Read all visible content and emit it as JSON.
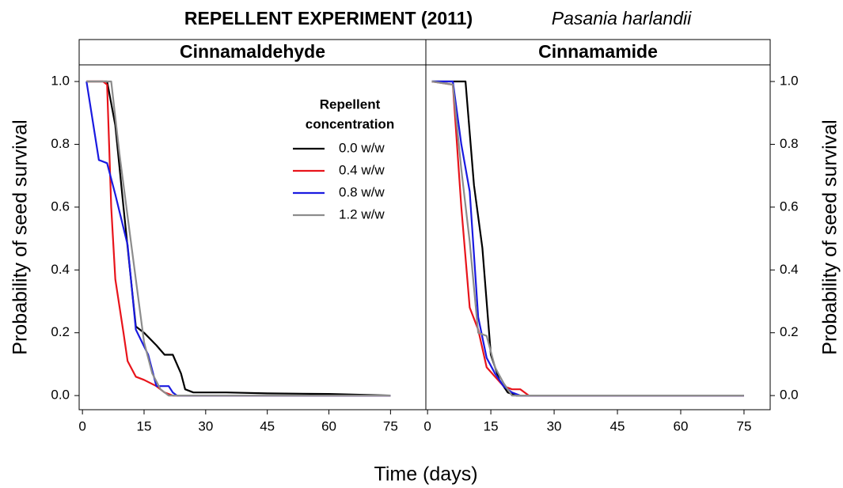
{
  "title": "REPELLENT EXPERIMENT (2011)",
  "species": "Pasania harlandii",
  "x_label": "Time (days)",
  "y_label": "Probability of seed survival",
  "legend_title": [
    "Repellent",
    "concentration"
  ],
  "chart_data": [
    {
      "type": "line",
      "title": "Cinnamaldehyde",
      "y_tick_side": "left",
      "xlim": [
        -0.8,
        83.6
      ],
      "xticks": [
        0,
        15,
        30,
        45,
        60,
        75
      ],
      "ylim": [
        -0.045,
        1.053
      ],
      "yticks": [
        {
          "value": 0,
          "label": "0.0"
        },
        0.2,
        0.4,
        0.6,
        0.8,
        {
          "value": 1,
          "label": "1.0"
        }
      ],
      "legend": "upper right",
      "series": [
        {
          "name": "0.0 w/w",
          "color": "#000000",
          "x": [
            1,
            5,
            6,
            8,
            10,
            13,
            15,
            18,
            20,
            22,
            24,
            25,
            27,
            35,
            45,
            60,
            75
          ],
          "values": [
            1,
            1,
            1,
            0.86,
            0.6,
            0.22,
            0.2,
            0.16,
            0.13,
            0.13,
            0.07,
            0.02,
            0.01,
            0.01,
            0.007,
            0.005,
            0
          ]
        },
        {
          "name": "0.4 w/w",
          "color": "#e8141b",
          "x": [
            1,
            5,
            6,
            7,
            8,
            10,
            11,
            13,
            15,
            18,
            20,
            22,
            75
          ],
          "values": [
            1,
            1,
            0.99,
            0.6,
            0.37,
            0.2,
            0.11,
            0.06,
            0.05,
            0.03,
            0.01,
            0,
            0
          ]
        },
        {
          "name": "0.8 w/w",
          "color": "#1a1ae0",
          "x": [
            1,
            4,
            6,
            8,
            11,
            13,
            16,
            18,
            21,
            22,
            23,
            75
          ],
          "values": [
            1,
            0.75,
            0.74,
            0.64,
            0.48,
            0.21,
            0.13,
            0.03,
            0.03,
            0.01,
            0,
            0
          ]
        },
        {
          "name": "1.2 w/w",
          "color": "#8c8c8c",
          "x": [
            1,
            5,
            7,
            9,
            12,
            15,
            17,
            19,
            21,
            72,
            75
          ],
          "values": [
            1,
            1,
            1,
            0.77,
            0.47,
            0.17,
            0.07,
            0.02,
            0,
            0,
            0
          ]
        }
      ]
    },
    {
      "type": "line",
      "title": "Cinnamamide",
      "y_tick_side": "right",
      "xlim": [
        -0.4,
        81.2
      ],
      "xticks": [
        0,
        15,
        30,
        45,
        60,
        75
      ],
      "ylim": [
        -0.045,
        1.053
      ],
      "yticks": [
        {
          "value": 0,
          "label": "0.0"
        },
        0.2,
        0.4,
        0.6,
        0.8,
        {
          "value": 1,
          "label": "1.0"
        }
      ],
      "series": [
        {
          "color": "#000000",
          "x": [
            1,
            6,
            9,
            11,
            13,
            15,
            17,
            19,
            21,
            75
          ],
          "values": [
            1,
            1,
            1,
            0.67,
            0.47,
            0.13,
            0.05,
            0.01,
            0,
            0
          ]
        },
        {
          "color": "#e8141b",
          "x": [
            1,
            6,
            8,
            10,
            12,
            14,
            16,
            18,
            20,
            22,
            24,
            75
          ],
          "values": [
            1,
            0.99,
            0.6,
            0.28,
            0.21,
            0.09,
            0.06,
            0.03,
            0.02,
            0.02,
            0,
            0
          ]
        },
        {
          "color": "#1a1ae0",
          "x": [
            1,
            6,
            8,
            10,
            12,
            14,
            16,
            18,
            20,
            22,
            75
          ],
          "values": [
            1,
            1,
            0.8,
            0.65,
            0.25,
            0.12,
            0.07,
            0.03,
            0.01,
            0,
            0
          ]
        },
        {
          "color": "#8c8c8c",
          "x": [
            1,
            6,
            8,
            10,
            12,
            14,
            16,
            18,
            20,
            75
          ],
          "values": [
            1,
            0.99,
            0.72,
            0.49,
            0.2,
            0.19,
            0.09,
            0.04,
            0,
            0
          ]
        }
      ]
    }
  ]
}
